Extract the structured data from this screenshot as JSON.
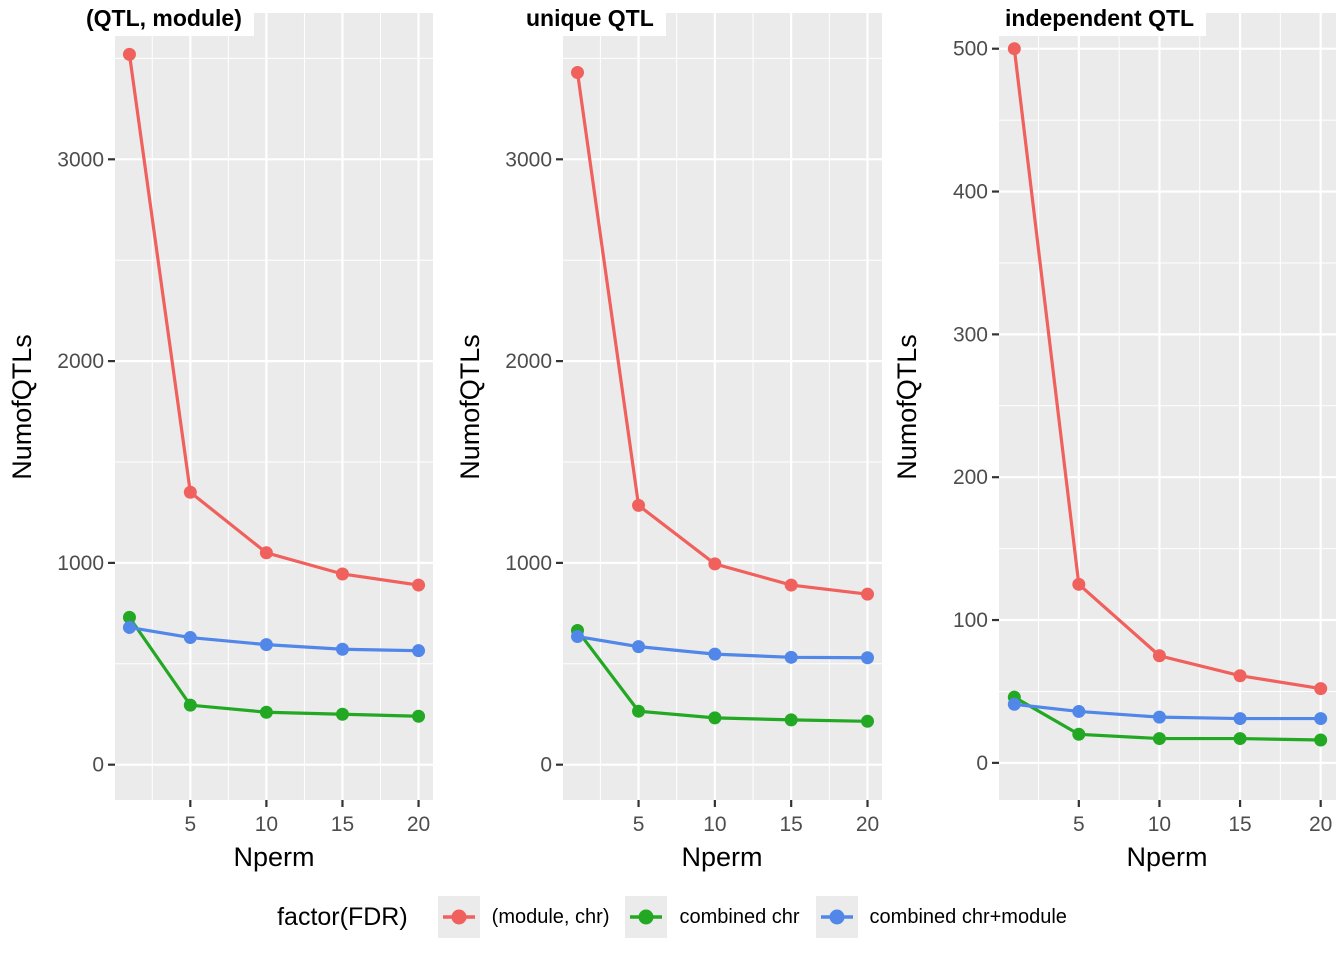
{
  "colors": {
    "panel_bg": "#EBEBEB",
    "grid": "#FFFFFF",
    "tick_mark": "#333333",
    "tick_label": "#4D4D4D",
    "red": "#F0605C",
    "green": "#22A822",
    "blue": "#5187E8"
  },
  "legend": {
    "title": "factor(FDR)",
    "position": "bottom",
    "items": [
      {
        "label": "(module, chr)",
        "color": "#F0605C"
      },
      {
        "label": "combined chr",
        "color": "#22A822"
      },
      {
        "label": "combined chr+module",
        "color": "#5187E8"
      }
    ]
  },
  "chart_data": [
    {
      "type": "line",
      "title": "(QTL, module)",
      "xlabel": "Nperm",
      "ylabel": "NumofQTLs",
      "grid": true,
      "x": [
        1,
        5,
        10,
        15,
        20
      ],
      "xlim": [
        0.05,
        20.95
      ],
      "ylim": [
        -175,
        3725
      ],
      "xticks": [
        5,
        10,
        15,
        20
      ],
      "xminor": [
        2.5,
        7.5,
        12.5,
        17.5
      ],
      "yticks": [
        0,
        1000,
        2000,
        3000
      ],
      "yminor": [
        500,
        1500,
        2500,
        3500
      ],
      "series": [
        {
          "name": "(module, chr)",
          "color": "#F0605C",
          "values": [
            3520,
            1350,
            1050,
            945,
            890
          ]
        },
        {
          "name": "combined chr",
          "color": "#22A822",
          "values": [
            730,
            295,
            260,
            250,
            240
          ]
        },
        {
          "name": "combined chr+module",
          "color": "#5187E8",
          "values": [
            680,
            630,
            595,
            572,
            565
          ]
        }
      ]
    },
    {
      "type": "line",
      "title": "unique QTL",
      "xlabel": "Nperm",
      "ylabel": "NumofQTLs",
      "grid": true,
      "x": [
        1,
        5,
        10,
        15,
        20
      ],
      "xlim": [
        0.05,
        20.95
      ],
      "ylim": [
        -175,
        3725
      ],
      "xticks": [
        5,
        10,
        15,
        20
      ],
      "xminor": [
        2.5,
        7.5,
        12.5,
        17.5
      ],
      "yticks": [
        0,
        1000,
        2000,
        3000
      ],
      "yminor": [
        500,
        1500,
        2500,
        3500
      ],
      "series": [
        {
          "name": "(module, chr)",
          "color": "#F0605C",
          "values": [
            3430,
            1285,
            995,
            890,
            845
          ]
        },
        {
          "name": "combined chr",
          "color": "#22A822",
          "values": [
            665,
            265,
            232,
            222,
            215
          ]
        },
        {
          "name": "combined chr+module",
          "color": "#5187E8",
          "values": [
            635,
            585,
            548,
            532,
            530
          ]
        }
      ]
    },
    {
      "type": "line",
      "title": "independent QTL",
      "xlabel": "Nperm",
      "ylabel": "NumofQTLs",
      "grid": true,
      "x": [
        1,
        5,
        10,
        15,
        20
      ],
      "xlim": [
        0.05,
        20.95
      ],
      "ylim": [
        -26,
        525
      ],
      "xticks": [
        5,
        10,
        15,
        20
      ],
      "xminor": [
        2.5,
        7.5,
        12.5,
        17.5
      ],
      "yticks": [
        0,
        100,
        200,
        300,
        400,
        500
      ],
      "yminor": [
        50,
        150,
        250,
        350,
        450
      ],
      "series": [
        {
          "name": "(module, chr)",
          "color": "#F0605C",
          "values": [
            500,
            125,
            75,
            61,
            52
          ]
        },
        {
          "name": "combined chr",
          "color": "#22A822",
          "values": [
            46,
            20,
            17,
            17,
            16
          ]
        },
        {
          "name": "combined chr+module",
          "color": "#5187E8",
          "values": [
            41,
            36,
            32,
            31,
            31
          ]
        }
      ]
    }
  ]
}
